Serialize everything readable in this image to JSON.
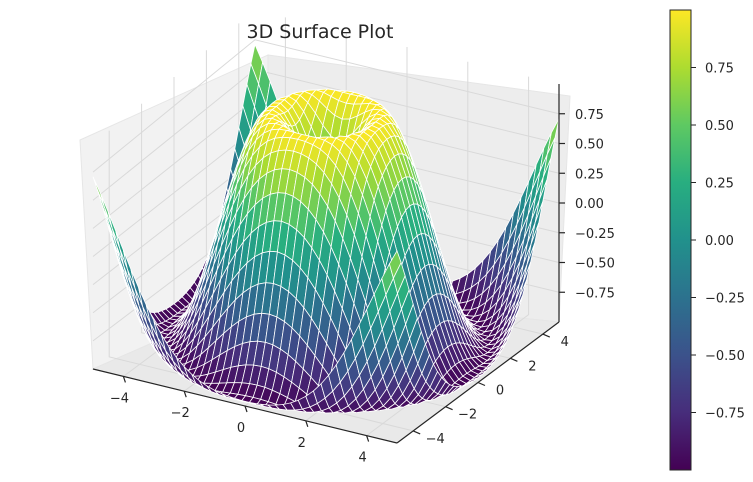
{
  "chart_data": {
    "type": "surface3d",
    "title": "3D Surface Plot",
    "function": "sin(sqrt(x^2 + y^2))",
    "x_range": [
      -5,
      5
    ],
    "y_range": [
      -5,
      5
    ],
    "z_range": [
      -1,
      1
    ],
    "x_ticks": [
      "−4",
      "−2",
      "0",
      "2",
      "4"
    ],
    "y_ticks": [
      "−4",
      "−2",
      "0",
      "2",
      "4"
    ],
    "z_ticks": [
      "−0.75",
      "−0.50",
      "−0.25",
      "0.00",
      "0.25",
      "0.50",
      "0.75"
    ],
    "colorbar": {
      "colormap": "viridis",
      "range": [
        -1,
        1
      ],
      "ticks": [
        "−0.75",
        "−0.50",
        "−0.25",
        "0.00",
        "0.25",
        "0.50",
        "0.75"
      ]
    },
    "grid": true,
    "mesh_edge_color": "#ffffff"
  }
}
